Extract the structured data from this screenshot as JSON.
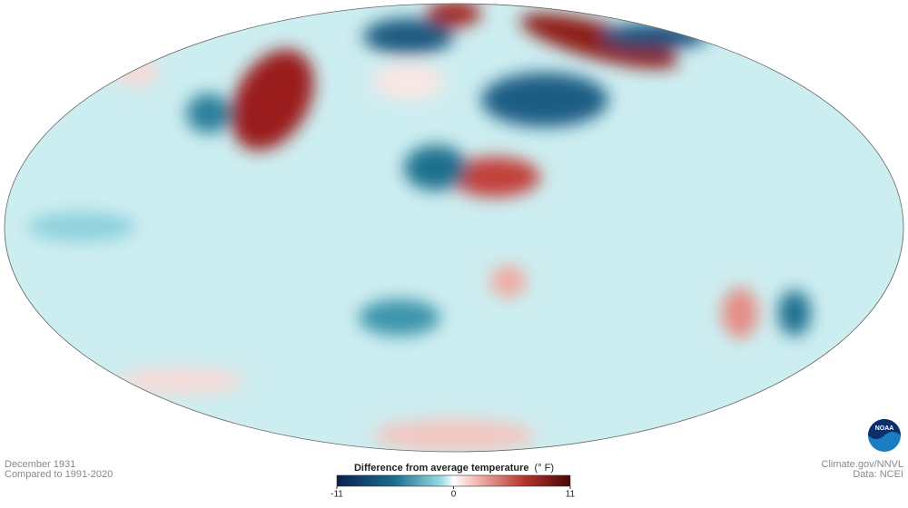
{
  "header": {
    "date": "December 1931",
    "baseline": "Compared to 1991-2020"
  },
  "legend": {
    "title": "Difference from average temperature",
    "unit": "(° F)",
    "range": [
      -11,
      11
    ],
    "ticks": [
      -11,
      0,
      11
    ]
  },
  "credits": {
    "source": "Climate.gov/NNVL",
    "data": "Data: NCEI"
  },
  "logo": "NOAA"
}
